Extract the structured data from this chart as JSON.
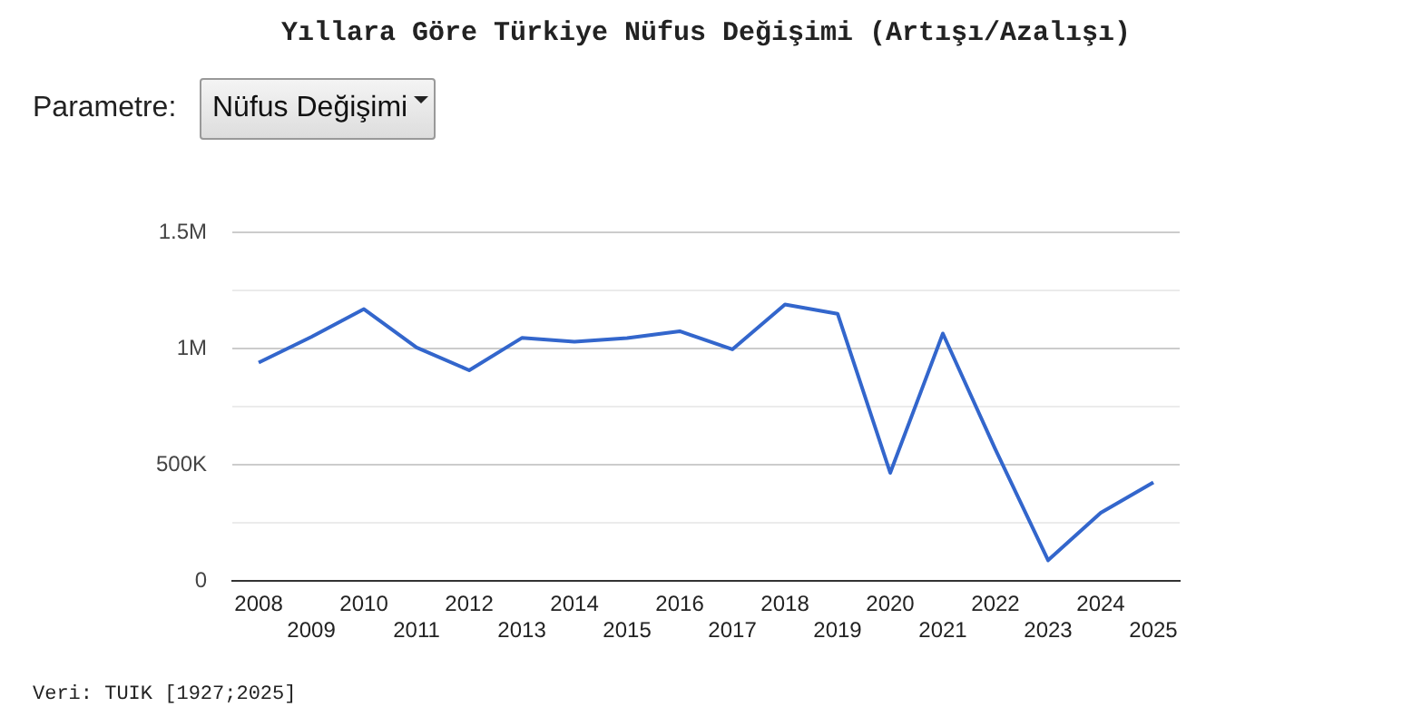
{
  "chart_data": {
    "type": "line",
    "title": "Yıllara Göre Türkiye Nüfus Değişimi (Artışı/Azalışı)",
    "categories": [
      "2008",
      "2009",
      "2010",
      "2011",
      "2012",
      "2013",
      "2014",
      "2015",
      "2016",
      "2017",
      "2018",
      "2019",
      "2020",
      "2021",
      "2022",
      "2023",
      "2024",
      "2025"
    ],
    "series": [
      {
        "color": "#3366cc",
        "values": [
          940000,
          1050000,
          1170000,
          1005000,
          907000,
          1046000,
          1030000,
          1045000,
          1075000,
          997000,
          1190000,
          1150000,
          466000,
          1065000,
          566000,
          90000,
          294000,
          425000
        ]
      }
    ],
    "ylim": [
      0,
      1500000
    ],
    "yticks": [
      0,
      {
        "value": 250000,
        "label": null
      },
      {
        "value": 500000,
        "label": "500K"
      },
      {
        "value": 750000,
        "label": null
      },
      {
        "value": 1000000,
        "label": "1M"
      },
      {
        "value": 1250000,
        "label": null
      },
      {
        "value": 1500000,
        "label": "1.5M"
      }
    ],
    "grid": "y",
    "legend": false,
    "marker": "none",
    "line_style": "solid",
    "annotations": [
      "Veri: TUIK [1927;2025]",
      "Parametre:",
      "Nüfus Değişimi"
    ]
  }
}
